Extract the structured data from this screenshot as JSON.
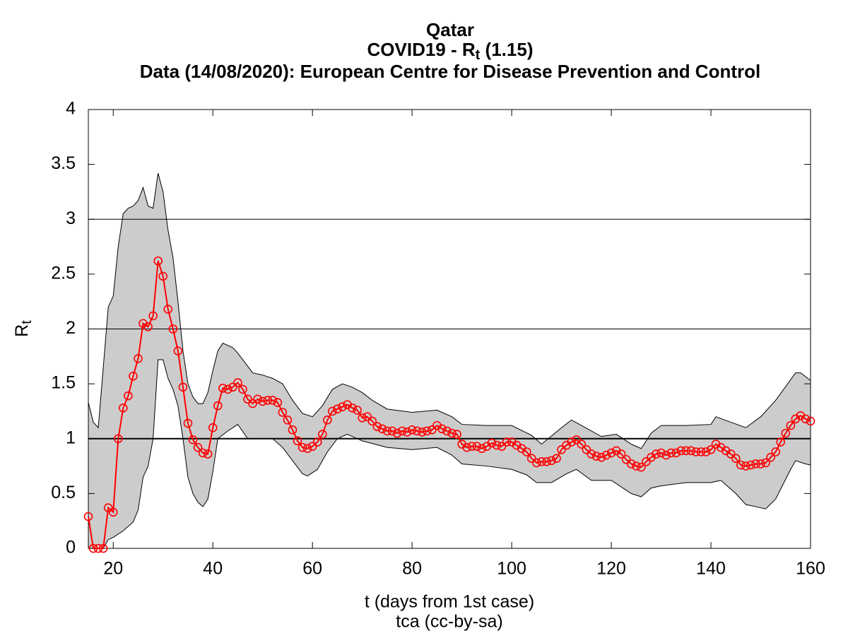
{
  "chart_data": {
    "type": "line",
    "title": "Qatar",
    "subtitle": [
      "COVID19 - R",
      "t",
      " (1.15)"
    ],
    "source": "Data (14/08/2020): European Centre for Disease Prevention and Control",
    "xlabel": "t (days from 1st case)",
    "footer": "tca (cc-by-sa)",
    "ylabel": [
      "R",
      "t"
    ],
    "xlim": [
      15,
      160
    ],
    "xticks": [
      20,
      40,
      60,
      80,
      100,
      120,
      140,
      160
    ],
    "ylim": [
      0,
      4
    ],
    "yticks": [
      0,
      0.5,
      1,
      1.5,
      2,
      2.5,
      3,
      3.5,
      4
    ],
    "hlines": [
      1,
      2,
      3
    ],
    "color": "#ff0000",
    "x": [
      15,
      16,
      17,
      18,
      19,
      20,
      21,
      22,
      23,
      24,
      25,
      26,
      27,
      28,
      29,
      30,
      31,
      32,
      33,
      34,
      35,
      36,
      37,
      38,
      39,
      40,
      41,
      42,
      43,
      44,
      45,
      46,
      47,
      48,
      49,
      50,
      51,
      52,
      53,
      54,
      55,
      56,
      57,
      58,
      59,
      60,
      61,
      62,
      63,
      64,
      65,
      66,
      67,
      68,
      69,
      70,
      71,
      72,
      73,
      74,
      75,
      76,
      77,
      78,
      79,
      80,
      81,
      82,
      83,
      84,
      85,
      86,
      87,
      88,
      89,
      90,
      91,
      92,
      93,
      94,
      95,
      96,
      97,
      98,
      99,
      100,
      101,
      102,
      103,
      104,
      105,
      106,
      107,
      108,
      109,
      110,
      111,
      112,
      113,
      114,
      115,
      116,
      117,
      118,
      119,
      120,
      121,
      122,
      123,
      124,
      125,
      126,
      127,
      128,
      129,
      130,
      131,
      132,
      133,
      134,
      135,
      136,
      137,
      138,
      139,
      140,
      141,
      142,
      143,
      144,
      145,
      146,
      147,
      148,
      149,
      150,
      151,
      152,
      153,
      154,
      155,
      156,
      157,
      158,
      159,
      160
    ],
    "values": [
      0.29,
      0,
      0,
      0,
      0.37,
      0.33,
      1.0,
      1.28,
      1.39,
      1.57,
      1.73,
      2.05,
      2.02,
      2.12,
      2.62,
      2.48,
      2.18,
      2.0,
      1.8,
      1.47,
      1.14,
      0.99,
      0.92,
      0.87,
      0.86,
      1.1,
      1.3,
      1.46,
      1.45,
      1.47,
      1.51,
      1.45,
      1.36,
      1.32,
      1.36,
      1.34,
      1.35,
      1.35,
      1.33,
      1.24,
      1.17,
      1.08,
      0.98,
      0.92,
      0.91,
      0.93,
      0.97,
      1.04,
      1.17,
      1.25,
      1.27,
      1.29,
      1.31,
      1.28,
      1.26,
      1.19,
      1.2,
      1.16,
      1.11,
      1.09,
      1.07,
      1.07,
      1.05,
      1.07,
      1.06,
      1.08,
      1.07,
      1.06,
      1.07,
      1.08,
      1.12,
      1.09,
      1.07,
      1.05,
      1.04,
      0.95,
      0.92,
      0.93,
      0.93,
      0.91,
      0.93,
      0.96,
      0.94,
      0.93,
      0.97,
      0.97,
      0.94,
      0.91,
      0.88,
      0.82,
      0.78,
      0.79,
      0.79,
      0.8,
      0.82,
      0.9,
      0.94,
      0.97,
      0.99,
      0.95,
      0.9,
      0.86,
      0.84,
      0.83,
      0.85,
      0.87,
      0.89,
      0.86,
      0.81,
      0.77,
      0.75,
      0.74,
      0.79,
      0.83,
      0.86,
      0.87,
      0.85,
      0.87,
      0.87,
      0.89,
      0.89,
      0.89,
      0.88,
      0.88,
      0.88,
      0.9,
      0.95,
      0.92,
      0.89,
      0.86,
      0.82,
      0.76,
      0.75,
      0.76,
      0.77,
      0.77,
      0.78,
      0.83,
      0.88,
      0.97,
      1.05,
      1.12,
      1.18,
      1.21,
      1.18,
      1.16
    ],
    "band": {
      "color": "#cccccc",
      "upper": {
        "x": [
          15,
          16,
          17,
          18,
          19,
          20,
          21,
          22,
          23,
          24,
          25,
          26,
          27,
          28,
          29,
          30,
          31,
          32,
          33,
          34,
          35,
          36,
          37,
          38,
          39,
          40,
          41,
          42,
          44,
          45,
          46,
          48,
          50,
          52,
          54,
          56,
          58,
          60,
          62,
          64,
          66,
          68,
          70,
          72,
          75,
          80,
          85,
          88,
          90,
          95,
          100,
          104,
          106,
          110,
          112,
          114,
          118,
          121,
          124,
          126,
          128,
          130,
          135,
          140,
          141,
          144,
          147,
          150,
          153,
          157,
          158,
          160
        ],
        "values": [
          1.33,
          1.15,
          1.1,
          1.65,
          2.2,
          2.3,
          2.75,
          3.05,
          3.1,
          3.12,
          3.17,
          3.29,
          3.12,
          3.1,
          3.42,
          3.25,
          2.9,
          2.65,
          2.25,
          1.8,
          1.5,
          1.38,
          1.32,
          1.32,
          1.42,
          1.62,
          1.8,
          1.87,
          1.83,
          1.78,
          1.72,
          1.6,
          1.58,
          1.55,
          1.5,
          1.35,
          1.23,
          1.2,
          1.3,
          1.45,
          1.5,
          1.47,
          1.42,
          1.35,
          1.27,
          1.24,
          1.26,
          1.2,
          1.13,
          1.12,
          1.12,
          1.03,
          0.95,
          1.1,
          1.17,
          1.12,
          1.02,
          1.04,
          0.95,
          0.91,
          1.05,
          1.12,
          1.12,
          1.13,
          1.2,
          1.15,
          1.1,
          1.2,
          1.35,
          1.6,
          1.6,
          1.53
        ]
      },
      "lower": {
        "x": [
          15,
          18,
          19,
          20,
          22,
          24,
          25,
          26,
          27,
          28,
          29,
          30,
          31,
          32,
          33,
          34,
          35,
          36,
          37,
          38,
          39,
          40,
          41,
          43,
          45,
          47,
          50,
          52,
          54,
          56,
          58,
          59,
          61,
          63,
          65,
          67,
          70,
          75,
          80,
          85,
          88,
          90,
          95,
          100,
          103,
          105,
          108,
          111,
          113,
          116,
          120,
          124,
          126,
          128,
          130,
          135,
          140,
          142,
          145,
          147,
          150,
          151,
          153,
          156,
          157,
          159,
          160
        ],
        "values": [
          0,
          0,
          0.08,
          0.1,
          0.16,
          0.24,
          0.35,
          0.65,
          0.75,
          1.0,
          1.72,
          1.72,
          1.55,
          1.45,
          1.3,
          1.0,
          0.65,
          0.5,
          0.42,
          0.38,
          0.45,
          0.7,
          1.0,
          1.07,
          1.13,
          1.0,
          1.0,
          1.0,
          0.92,
          0.8,
          0.68,
          0.66,
          0.72,
          0.88,
          1.0,
          1.04,
          0.98,
          0.92,
          0.9,
          0.92,
          0.85,
          0.77,
          0.75,
          0.72,
          0.67,
          0.6,
          0.6,
          0.68,
          0.72,
          0.62,
          0.62,
          0.5,
          0.47,
          0.55,
          0.57,
          0.6,
          0.6,
          0.62,
          0.5,
          0.4,
          0.37,
          0.36,
          0.45,
          0.72,
          0.8,
          0.77,
          0.76
        ]
      }
    }
  }
}
